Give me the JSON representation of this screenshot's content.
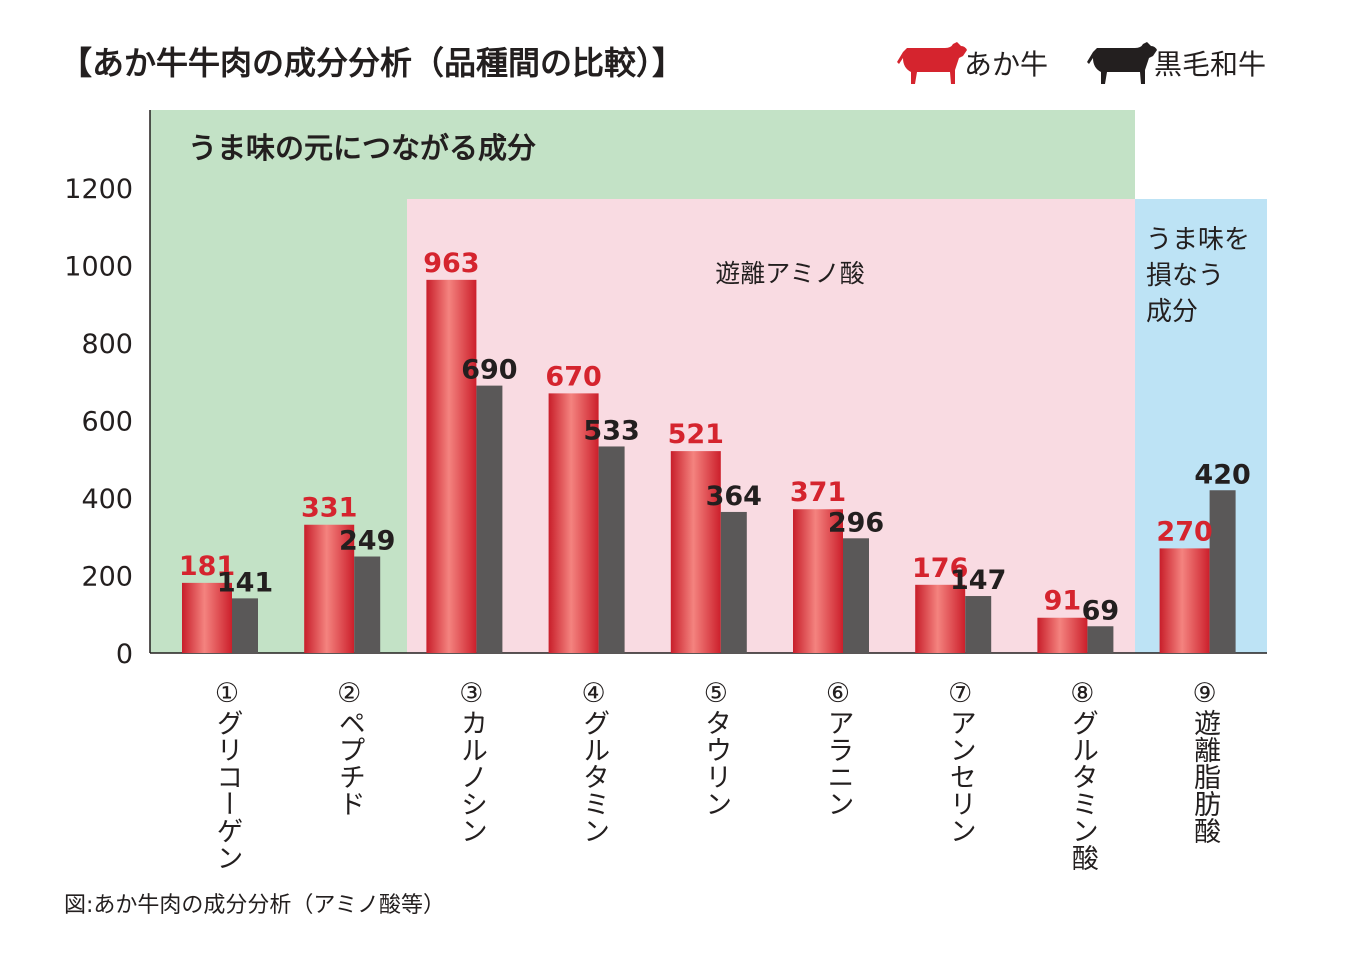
{
  "chart_data": {
    "type": "bar",
    "title": "【あか牛牛肉の成分分析（品種間の比較）】",
    "caption": "図:あか牛肉の成分分析（アミノ酸等）",
    "categories": [
      "①グリコーゲン",
      "②ペプチド",
      "③カルノシン",
      "④グルタミン",
      "⑤タウリン",
      "⑥アラニン",
      "⑦アンセリン",
      "⑧グルタミン酸",
      "⑨遊離脂肪酸"
    ],
    "series": [
      {
        "name": "あか牛",
        "values": [
          181,
          331,
          963,
          670,
          521,
          371,
          176,
          91,
          270
        ]
      },
      {
        "name": "黒毛和牛",
        "values": [
          141,
          249,
          690,
          533,
          364,
          296,
          147,
          69,
          420
        ]
      }
    ],
    "yticks": [
      "0",
      "200",
      "400",
      "600",
      "800",
      "1000",
      "1200"
    ],
    "ylim": [
      0,
      1200
    ],
    "grid": false,
    "legend": "top-right",
    "regions": [
      {
        "label": "うま味の元につながる成分",
        "color": "#c3e2c6",
        "from_category": 0,
        "to_category": 7
      },
      {
        "label": "遊離アミノ酸",
        "color": "#f9dbe2",
        "from_category": 2,
        "to_category": 7
      },
      {
        "label_lines": [
          "うま味を",
          "損なう",
          "成分"
        ],
        "color": "#bde3f5",
        "from_category": 8,
        "to_category": 8
      }
    ],
    "colors": {
      "akaushi": "#d5242e",
      "kuroge": "#5a5858",
      "akaushi_label": "#d5242e",
      "kuroge_label": "#231f1f"
    }
  }
}
